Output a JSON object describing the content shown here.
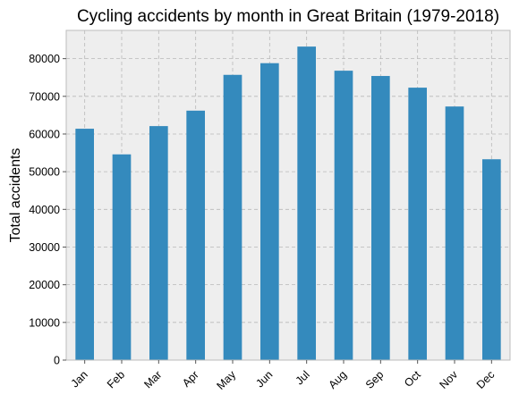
{
  "chart_data": {
    "type": "bar",
    "title": "Cycling accidents by month in Great Britain (1979-2018)",
    "xlabel": "",
    "ylabel": "Total accidents",
    "categories": [
      "Jan",
      "Feb",
      "Mar",
      "Apr",
      "May",
      "Jun",
      "Jul",
      "Aug",
      "Sep",
      "Oct",
      "Nov",
      "Dec"
    ],
    "values": [
      61400,
      54600,
      62100,
      66200,
      75700,
      78800,
      83200,
      76800,
      75400,
      72300,
      67300,
      53300
    ],
    "ylim": [
      0,
      87500
    ],
    "yticks": [
      0,
      10000,
      20000,
      30000,
      40000,
      50000,
      60000,
      70000,
      80000
    ],
    "grid": true,
    "colors": {
      "bar": "#348ABD",
      "background": "#EEEEEE"
    }
  }
}
